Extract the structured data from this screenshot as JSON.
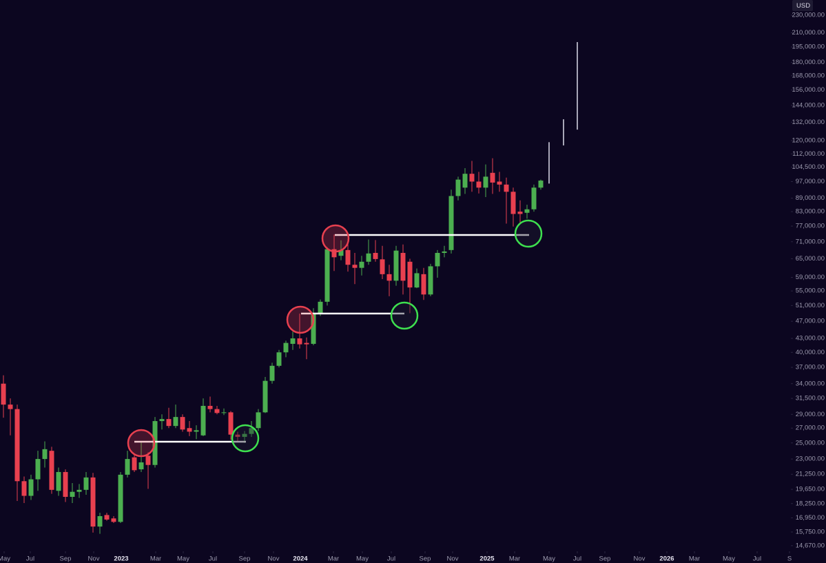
{
  "chart_data": {
    "type": "candlestick",
    "log_scale": true,
    "grid": false,
    "currency": "USD",
    "up_color": "#4caf50",
    "down_color": "#e8404f",
    "x": [
      0,
      1,
      2,
      3,
      4,
      5,
      6,
      7,
      8,
      9,
      10,
      11,
      12,
      13,
      14,
      15,
      16,
      17,
      18,
      19,
      20,
      21,
      22,
      23,
      24,
      25,
      26,
      27,
      28,
      29,
      30,
      31,
      32,
      33,
      34,
      35,
      36,
      37,
      38,
      39,
      40,
      41,
      42,
      43,
      44,
      45,
      46,
      47,
      48,
      49,
      50,
      51,
      52,
      53,
      54,
      55,
      56,
      57,
      58,
      59,
      60,
      61,
      62,
      63,
      64,
      65,
      66,
      67,
      68,
      69,
      70,
      71,
      72,
      73,
      74,
      75,
      76,
      77,
      78
    ],
    "open": [
      34000,
      30500,
      29800,
      20500,
      19000,
      20700,
      23000,
      24000,
      19500,
      21500,
      18900,
      19400,
      19600,
      20900,
      16200,
      17200,
      16900,
      16600,
      21200,
      23200,
      21800,
      23400,
      22300,
      28000,
      28300,
      27300,
      28600,
      27000,
      26500,
      26000,
      30300,
      29800,
      29200,
      29300,
      26100,
      25800,
      26200,
      27000,
      29300,
      34500,
      37300,
      40000,
      41800,
      43000,
      42000,
      41800,
      49000,
      52000,
      68300,
      66000,
      68000,
      63000,
      62000,
      64000,
      67000,
      64800,
      60000,
      58000,
      67000,
      64000,
      56000,
      60000,
      54000,
      62500,
      67000,
      68000,
      90000,
      94000,
      101000,
      97000,
      94000,
      101500,
      97000,
      95500,
      92000,
      83000,
      82500,
      84000,
      94000
    ],
    "high": [
      35500,
      31500,
      30500,
      21000,
      21200,
      24000,
      25200,
      24500,
      22000,
      21800,
      20300,
      20200,
      21500,
      21400,
      17400,
      17400,
      17100,
      21500,
      24000,
      23500,
      25200,
      23800,
      28600,
      29000,
      30000,
      30500,
      29000,
      28000,
      27400,
      31500,
      31800,
      30300,
      29900,
      29500,
      26500,
      26600,
      28000,
      29800,
      35200,
      37900,
      40500,
      42500,
      44500,
      48900,
      43200,
      50300,
      52600,
      69000,
      73700,
      71500,
      72000,
      67000,
      66000,
      71800,
      71600,
      69500,
      63000,
      69500,
      70000,
      65000,
      61800,
      62000,
      63300,
      68000,
      69500,
      93000,
      99500,
      104000,
      108000,
      102000,
      106000,
      109500,
      102000,
      99000,
      94000,
      88000,
      86000,
      95500,
      98000
    ],
    "low": [
      28500,
      26000,
      18500,
      18300,
      18600,
      19500,
      22000,
      19200,
      19000,
      18400,
      18300,
      18800,
      19100,
      15700,
      15600,
      16700,
      16500,
      16500,
      20900,
      21500,
      21500,
      19700,
      22000,
      26800,
      27000,
      27000,
      26500,
      25900,
      25500,
      25900,
      29300,
      29000,
      28900,
      25400,
      25200,
      25000,
      25800,
      26600,
      29200,
      34000,
      37000,
      39000,
      40500,
      40800,
      38600,
      41500,
      48300,
      51000,
      61000,
      64500,
      60800,
      57000,
      59600,
      63000,
      64000,
      58500,
      53500,
      56500,
      54000,
      49000,
      55800,
      52500,
      53500,
      58900,
      65500,
      66800,
      88000,
      91000,
      92000,
      91200,
      89500,
      91000,
      92000,
      78000,
      76800,
      78000,
      80000,
      83000,
      93000
    ],
    "close": [
      30500,
      29800,
      20500,
      19000,
      20700,
      23000,
      24200,
      19600,
      21500,
      18900,
      19400,
      19600,
      20900,
      16200,
      17100,
      16800,
      16600,
      21200,
      23000,
      21700,
      22600,
      22300,
      28000,
      28300,
      27300,
      28600,
      26800,
      26500,
      26700,
      30300,
      29800,
      29200,
      29300,
      26100,
      25800,
      26200,
      27000,
      29300,
      34500,
      37300,
      40000,
      42000,
      43000,
      41700,
      41700,
      49000,
      52000,
      68300,
      65500,
      68000,
      63000,
      62000,
      64000,
      66800,
      64900,
      60000,
      58000,
      67800,
      58000,
      56000,
      60300,
      54000,
      62500,
      67000,
      67500,
      90000,
      98000,
      101000,
      97000,
      94000,
      99500,
      96500,
      95500,
      92000,
      82000,
      82000,
      84000,
      94000,
      97500
    ],
    "projections": {
      "color": "#a9a7b8",
      "x": [
        79.2,
        81.3,
        83.3
      ],
      "low": [
        96000,
        117000,
        127000
      ],
      "high": [
        119000,
        134000,
        200000
      ]
    },
    "xlim": [
      -0.5,
      114.3
    ],
    "xticks": [
      {
        "value": 0.1,
        "label": "May"
      },
      {
        "value": 3.9,
        "label": "Jul"
      },
      {
        "value": 9.0,
        "label": "Sep"
      },
      {
        "value": 13.1,
        "label": "Nov"
      },
      {
        "value": 17.1,
        "label": "2023"
      },
      {
        "value": 22.1,
        "label": "Mar"
      },
      {
        "value": 26.1,
        "label": "May"
      },
      {
        "value": 30.4,
        "label": "Jul"
      },
      {
        "value": 35.0,
        "label": "Sep"
      },
      {
        "value": 39.2,
        "label": "Nov"
      },
      {
        "value": 43.1,
        "label": "2024"
      },
      {
        "value": 47.9,
        "label": "Mar"
      },
      {
        "value": 52.1,
        "label": "May"
      },
      {
        "value": 56.3,
        "label": "Jul"
      },
      {
        "value": 61.2,
        "label": "Sep"
      },
      {
        "value": 65.2,
        "label": "Nov"
      },
      {
        "value": 70.2,
        "label": "2025"
      },
      {
        "value": 74.2,
        "label": "Mar"
      },
      {
        "value": 79.2,
        "label": "May"
      },
      {
        "value": 83.3,
        "label": "Jul"
      },
      {
        "value": 87.3,
        "label": "Sep"
      },
      {
        "value": 92.3,
        "label": "Nov"
      },
      {
        "value": 96.3,
        "label": "2026"
      },
      {
        "value": 100.3,
        "label": "Mar"
      },
      {
        "value": 105.3,
        "label": "May"
      },
      {
        "value": 109.4,
        "label": "Jul"
      },
      {
        "value": 114.1,
        "label": "S"
      }
    ],
    "ylim": [
      14250,
      248800
    ],
    "yticks": [
      {
        "value": 230000,
        "label": "230,000.00"
      },
      {
        "value": 210000,
        "label": "210,000.00"
      },
      {
        "value": 195000,
        "label": "195,000.00"
      },
      {
        "value": 180000,
        "label": "180,000.00"
      },
      {
        "value": 168000,
        "label": "168,000.00"
      },
      {
        "value": 156000,
        "label": "156,000.00"
      },
      {
        "value": 144000,
        "label": "144,000.00"
      },
      {
        "value": 132000,
        "label": "132,000.00"
      },
      {
        "value": 120000,
        "label": "120,000.00"
      },
      {
        "value": 112000,
        "label": "112,000.00"
      },
      {
        "value": 104500,
        "label": "104,500.00"
      },
      {
        "value": 97000,
        "label": "97,000.00"
      },
      {
        "value": 89000,
        "label": "89,000.00"
      },
      {
        "value": 83000,
        "label": "83,000.00"
      },
      {
        "value": 77000,
        "label": "77,000.00"
      },
      {
        "value": 71000,
        "label": "71,000.00"
      },
      {
        "value": 65000,
        "label": "65,000.00"
      },
      {
        "value": 59000,
        "label": "59,000.00"
      },
      {
        "value": 55000,
        "label": "55,000.00"
      },
      {
        "value": 51000,
        "label": "51,000.00"
      },
      {
        "value": 47000,
        "label": "47,000.00"
      },
      {
        "value": 43000,
        "label": "43,000.00"
      },
      {
        "value": 40000,
        "label": "40,000.00"
      },
      {
        "value": 37000,
        "label": "37,000.00"
      },
      {
        "value": 34000,
        "label": "34,000.00"
      },
      {
        "value": 31500,
        "label": "31,500.00"
      },
      {
        "value": 29000,
        "label": "29,000.00"
      },
      {
        "value": 27000,
        "label": "27,000.00"
      },
      {
        "value": 25000,
        "label": "25,000.00"
      },
      {
        "value": 23000,
        "label": "23,000.00"
      },
      {
        "value": 21250,
        "label": "21,250.00"
      },
      {
        "value": 19650,
        "label": "19,650.00"
      },
      {
        "value": 18250,
        "label": "18,250.00"
      },
      {
        "value": 16950,
        "label": "16,950.00"
      },
      {
        "value": 15750,
        "label": "15,750.00"
      },
      {
        "value": 14670,
        "label": "14,670.00"
      }
    ]
  }
}
